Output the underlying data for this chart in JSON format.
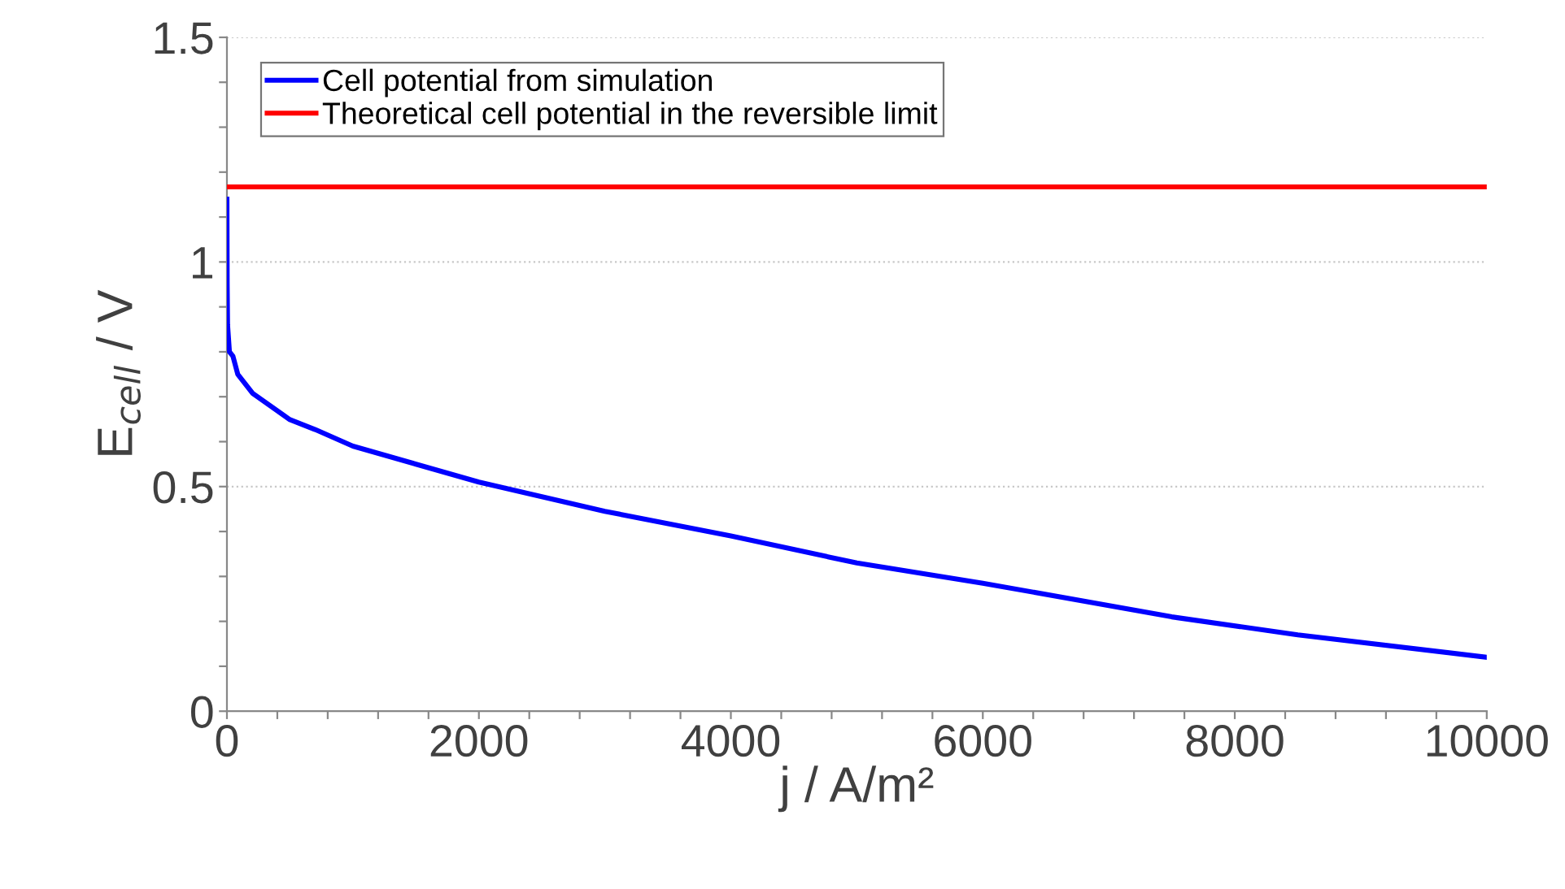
{
  "chart_data": {
    "type": "line",
    "xlabel": "j / A/m²",
    "ylabel": "E$_{cell}$ / V",
    "xlim": [
      0,
      10000
    ],
    "ylim": [
      0,
      1.5
    ],
    "xticks": [
      0,
      {
        "value": 400,
        "label": null
      },
      {
        "value": 800,
        "label": null
      },
      {
        "value": 1200,
        "label": null
      },
      {
        "value": 1600,
        "label": null
      },
      2000,
      {
        "value": 2400,
        "label": null
      },
      {
        "value": 2800,
        "label": null
      },
      {
        "value": 3200,
        "label": null
      },
      {
        "value": 3600,
        "label": null
      },
      4000,
      {
        "value": 4400,
        "label": null
      },
      {
        "value": 4800,
        "label": null
      },
      {
        "value": 5200,
        "label": null
      },
      {
        "value": 5600,
        "label": null
      },
      6000,
      {
        "value": 6400,
        "label": null
      },
      {
        "value": 6800,
        "label": null
      },
      {
        "value": 7200,
        "label": null
      },
      {
        "value": 7600,
        "label": null
      },
      8000,
      {
        "value": 8400,
        "label": null
      },
      {
        "value": 8800,
        "label": null
      },
      {
        "value": 9200,
        "label": null
      },
      {
        "value": 9600,
        "label": null
      },
      10000
    ],
    "yticks": [
      0,
      {
        "value": 0.1,
        "label": null
      },
      {
        "value": 0.2,
        "label": null
      },
      {
        "value": 0.3,
        "label": null
      },
      {
        "value": 0.4,
        "label": null
      },
      0.5,
      {
        "value": 0.6,
        "label": null
      },
      {
        "value": 0.7,
        "label": null
      },
      {
        "value": 0.8,
        "label": null
      },
      {
        "value": 0.9,
        "label": null
      },
      1,
      {
        "value": 1.1,
        "label": null
      },
      {
        "value": 1.2,
        "label": null
      },
      {
        "value": 1.3,
        "label": null
      },
      {
        "value": 1.4,
        "label": null
      },
      1.5
    ],
    "grid": "y",
    "legend": "top left",
    "marker": "none",
    "line_style": "solid",
    "series": [
      {
        "name": "Cell potential from simulation",
        "color": "#0000ff",
        "x": [
          0,
          2,
          5,
          20,
          48,
          86,
          206,
          500,
          700,
          1000,
          2000,
          3000,
          4000,
          5000,
          6000,
          7500,
          8500,
          10000
        ],
        "values": [
          1.14,
          0.95,
          0.86,
          0.8,
          0.79,
          0.75,
          0.707,
          0.649,
          0.627,
          0.59,
          0.51,
          0.445,
          0.39,
          0.33,
          0.285,
          0.21,
          0.17,
          0.12
        ]
      },
      {
        "name": "Theoretical cell potential in the reversible limit",
        "color": "#ff0000",
        "x": [
          0,
          10000
        ],
        "values": [
          1.167,
          1.167
        ]
      }
    ]
  }
}
